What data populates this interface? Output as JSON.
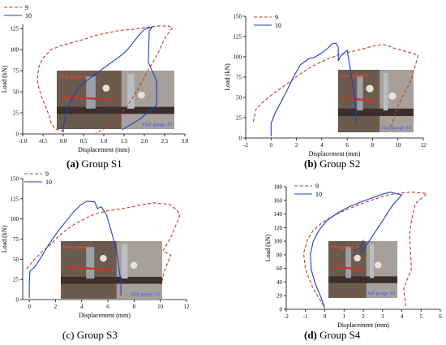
{
  "chart_data": [
    {
      "type": "line",
      "caption_letter": "(a)",
      "caption_text": "Group S1",
      "xlabel": "Displacement (mm)",
      "ylabel": "Load (kN)",
      "xlim": [
        -1.0,
        3.0
      ],
      "ylim": [
        0,
        130
      ],
      "xticks": [
        "-1.0",
        "-0.5",
        "0.0",
        "0.5",
        "1.0",
        "1.5",
        "2.0",
        "2.5",
        "3.0"
      ],
      "xtick_values": [
        -1.0,
        -0.5,
        0.0,
        0.5,
        1.0,
        1.5,
        2.0,
        2.5,
        3.0
      ],
      "yticks": [
        "0",
        "25",
        "50",
        "75",
        "100",
        "125"
      ],
      "ytick_values": [
        0,
        25,
        50,
        75,
        100,
        125
      ],
      "legend_position": "top-left",
      "photo_labels": [
        "Dial gauge 9",
        "Dial gauge 10"
      ],
      "series": [
        {
          "name": "9",
          "color": "#c0392b",
          "style": "dashed",
          "points": [
            [
              0.02,
              3
            ],
            [
              -0.2,
              6
            ],
            [
              -0.3,
              13
            ],
            [
              -0.35,
              22
            ],
            [
              -0.45,
              34
            ],
            [
              -0.55,
              46
            ],
            [
              -0.62,
              58
            ],
            [
              -0.64,
              66
            ],
            [
              -0.6,
              80
            ],
            [
              -0.5,
              90
            ],
            [
              -0.3,
              100
            ],
            [
              -0.1,
              104
            ],
            [
              0.2,
              108
            ],
            [
              0.5,
              112
            ],
            [
              0.8,
              117
            ],
            [
              1.1,
              120
            ],
            [
              1.4,
              123
            ],
            [
              1.7,
              124
            ],
            [
              2.0,
              126
            ],
            [
              2.3,
              128
            ],
            [
              2.6,
              128
            ],
            [
              2.7,
              126
            ],
            [
              2.55,
              117
            ],
            [
              2.45,
              108
            ],
            [
              2.35,
              97
            ],
            [
              2.2,
              84
            ],
            [
              2.05,
              72
            ],
            [
              1.9,
              58
            ],
            [
              1.7,
              42
            ],
            [
              1.5,
              28
            ],
            [
              1.25,
              15
            ],
            [
              1.0,
              6
            ],
            [
              0.8,
              1
            ]
          ]
        },
        {
          "name": "10",
          "color": "#1f3fc4",
          "style": "solid",
          "points": [
            [
              0.0,
              2
            ],
            [
              0.0,
              8
            ],
            [
              0.03,
              15
            ],
            [
              0.07,
              22
            ],
            [
              0.12,
              32
            ],
            [
              0.2,
              41
            ],
            [
              0.3,
              50
            ],
            [
              0.45,
              58
            ],
            [
              0.65,
              66
            ],
            [
              0.85,
              73
            ],
            [
              1.05,
              80
            ],
            [
              1.25,
              87
            ],
            [
              1.45,
              94
            ],
            [
              1.6,
              101
            ],
            [
              1.75,
              110
            ],
            [
              1.88,
              118
            ],
            [
              2.0,
              124
            ],
            [
              2.2,
              127
            ],
            [
              2.12,
              122
            ],
            [
              2.1,
              85
            ],
            [
              2.3,
              63
            ],
            [
              2.3,
              34
            ],
            [
              1.9,
              18
            ],
            [
              1.45,
              5
            ]
          ]
        }
      ]
    },
    {
      "type": "line",
      "caption_letter": "(b)",
      "caption_text": "Group S2",
      "xlabel": "Displacement (mm)",
      "ylabel": "Load (kN)",
      "xlim": [
        -2,
        12
      ],
      "ylim": [
        0,
        150
      ],
      "xticks": [
        "-2",
        "0",
        "2",
        "4",
        "6",
        "8",
        "10",
        "12"
      ],
      "xtick_values": [
        -2,
        0,
        2,
        4,
        6,
        8,
        10,
        12
      ],
      "yticks": [
        "0",
        "25",
        "50",
        "75",
        "100",
        "125",
        "150"
      ],
      "ytick_values": [
        0,
        25,
        50,
        75,
        100,
        125,
        150
      ],
      "legend_position": "top-left",
      "photo_labels": [
        "Dial gauge 9",
        "Dial gauge 10"
      ],
      "series": [
        {
          "name": "9",
          "color": "#c0392b",
          "style": "dashed",
          "points": [
            [
              -1.4,
              20
            ],
            [
              -1.2,
              35
            ],
            [
              -0.6,
              45
            ],
            [
              0.2,
              55
            ],
            [
              1.2,
              66
            ],
            [
              2.2,
              78
            ],
            [
              3.2,
              88
            ],
            [
              4.4,
              97
            ],
            [
              5.6,
              104
            ],
            [
              6.8,
              108
            ],
            [
              8.2,
              114
            ],
            [
              9.0,
              115
            ],
            [
              9.8,
              110
            ],
            [
              10.8,
              106
            ],
            [
              11.6,
              102
            ],
            [
              11.0,
              70
            ],
            [
              10.0,
              40
            ],
            [
              9.4,
              10
            ]
          ]
        },
        {
          "name": "10",
          "color": "#1f3fc4",
          "style": "solid",
          "points": [
            [
              0.0,
              2
            ],
            [
              0.0,
              18
            ],
            [
              0.3,
              30
            ],
            [
              0.8,
              45
            ],
            [
              1.3,
              60
            ],
            [
              1.8,
              76
            ],
            [
              2.3,
              90
            ],
            [
              2.9,
              97
            ],
            [
              3.5,
              100
            ],
            [
              4.0,
              105
            ],
            [
              4.5,
              111
            ],
            [
              4.8,
              116
            ],
            [
              5.1,
              117
            ],
            [
              5.3,
              112
            ],
            [
              5.3,
              95
            ],
            [
              5.5,
              101
            ],
            [
              6.0,
              108
            ],
            [
              6.3,
              80
            ],
            [
              6.6,
              50
            ],
            [
              6.7,
              20
            ]
          ]
        }
      ]
    },
    {
      "type": "line",
      "caption_letter": "(c)",
      "caption_text": "Group S3",
      "xlabel": "Displacement (mm)",
      "ylabel": "Load (kN)",
      "xlim": [
        -0.5,
        12
      ],
      "ylim": [
        0,
        150
      ],
      "xticks": [
        "0",
        "2",
        "4",
        "6",
        "8",
        "10",
        "12"
      ],
      "xtick_values": [
        0,
        2,
        4,
        6,
        8,
        10,
        12
      ],
      "yticks": [
        "0",
        "25",
        "50",
        "75",
        "100",
        "125",
        "150"
      ],
      "ytick_values": [
        0,
        25,
        50,
        75,
        100,
        125,
        150
      ],
      "legend_position": "top-left",
      "photo_labels": [
        "Dial gauge 9",
        "Dial gauge 10"
      ],
      "series": [
        {
          "name": "9",
          "color": "#c0392b",
          "style": "dashed",
          "points": [
            [
              -0.2,
              38
            ],
            [
              0.3,
              48
            ],
            [
              0.9,
              58
            ],
            [
              1.6,
              68
            ],
            [
              2.2,
              78
            ],
            [
              2.8,
              86
            ],
            [
              3.5,
              94
            ],
            [
              4.2,
              100
            ],
            [
              5.0,
              106
            ],
            [
              6.0,
              110
            ],
            [
              7.2,
              113
            ],
            [
              8.4,
              117
            ],
            [
              9.5,
              120
            ],
            [
              10.7,
              118
            ],
            [
              11.2,
              112
            ],
            [
              11.5,
              105
            ],
            [
              10.9,
              80
            ],
            [
              10.2,
              60
            ],
            [
              10.8,
              55
            ],
            [
              10.3,
              35
            ],
            [
              10.1,
              20
            ]
          ]
        },
        {
          "name": "10",
          "color": "#1f3fc4",
          "style": "solid",
          "points": [
            [
              0.0,
              2
            ],
            [
              0.0,
              20
            ],
            [
              0.05,
              35
            ],
            [
              0.4,
              40
            ],
            [
              0.9,
              52
            ],
            [
              1.4,
              66
            ],
            [
              1.9,
              78
            ],
            [
              2.4,
              89
            ],
            [
              2.9,
              99
            ],
            [
              3.4,
              109
            ],
            [
              3.9,
              117
            ],
            [
              4.4,
              122
            ],
            [
              5.0,
              121
            ],
            [
              5.2,
              113
            ],
            [
              5.5,
              115
            ],
            [
              5.9,
              105
            ],
            [
              6.2,
              88
            ],
            [
              6.6,
              65
            ],
            [
              6.8,
              45
            ],
            [
              7.0,
              20
            ],
            [
              7.0,
              5
            ]
          ]
        }
      ]
    },
    {
      "type": "line",
      "caption_letter": "(d)",
      "caption_text": "Group S4",
      "xlabel": "Displacement (mm)",
      "ylabel": "Load (kN)",
      "xlim": [
        -2,
        6
      ],
      "ylim": [
        0,
        180
      ],
      "xticks": [
        "-2",
        "-1",
        "0",
        "1",
        "2",
        "3",
        "4",
        "5",
        "6"
      ],
      "xtick_values": [
        -2,
        -1,
        0,
        1,
        2,
        3,
        4,
        5,
        6
      ],
      "yticks": [
        "0",
        "20",
        "40",
        "60",
        "80",
        "100",
        "120",
        "140",
        "160",
        "180"
      ],
      "ytick_values": [
        0,
        20,
        40,
        60,
        80,
        100,
        120,
        140,
        160,
        180
      ],
      "legend_position": "top-left",
      "photo_labels": [
        "Dial gauge 9",
        "Dial gauge 10"
      ],
      "series": [
        {
          "name": "9",
          "color": "#c0392b",
          "style": "dashed",
          "points": [
            [
              -0.05,
              5
            ],
            [
              -0.6,
              30
            ],
            [
              -1.0,
              58
            ],
            [
              -1.1,
              82
            ],
            [
              -0.9,
              102
            ],
            [
              -0.6,
              116
            ],
            [
              -0.1,
              128
            ],
            [
              0.5,
              138
            ],
            [
              1.1,
              146
            ],
            [
              1.9,
              155
            ],
            [
              2.6,
              162
            ],
            [
              3.3,
              168
            ],
            [
              4.0,
              171
            ],
            [
              4.6,
              172
            ],
            [
              5.3,
              170
            ],
            [
              4.7,
              155
            ],
            [
              4.5,
              130
            ],
            [
              4.4,
              110
            ],
            [
              4.5,
              60
            ],
            [
              4.1,
              30
            ],
            [
              4.2,
              5
            ]
          ]
        },
        {
          "name": "10",
          "color": "#1f3fc4",
          "style": "solid",
          "points": [
            [
              0.0,
              2
            ],
            [
              -0.2,
              18
            ],
            [
              -0.5,
              38
            ],
            [
              -0.7,
              58
            ],
            [
              -0.75,
              80
            ],
            [
              -0.6,
              100
            ],
            [
              -0.3,
              116
            ],
            [
              0.1,
              130
            ],
            [
              0.7,
              142
            ],
            [
              1.3,
              151
            ],
            [
              2.0,
              159
            ],
            [
              2.6,
              165
            ],
            [
              3.0,
              169
            ],
            [
              3.4,
              172
            ],
            [
              3.7,
              170
            ],
            [
              4.0,
              168
            ],
            [
              3.5,
              152
            ],
            [
              3.0,
              130
            ],
            [
              2.3,
              100
            ],
            [
              1.9,
              83
            ],
            [
              1.9,
              90
            ],
            [
              2.0,
              102
            ]
          ]
        }
      ]
    }
  ]
}
